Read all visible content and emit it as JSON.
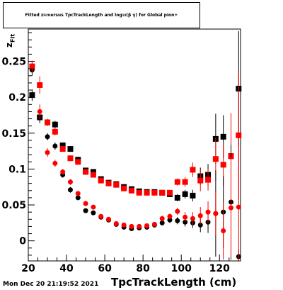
{
  "chart_data": {
    "type": "scatter",
    "title_parts": {
      "pre": "Fitted  z",
      "sub1": "Fit",
      "mid": " versus TpcTrackLength and log",
      "sub2": "10",
      "post": "(β γ) for Global pion+"
    },
    "xlabel": "TpcTrackLength (cm)",
    "ylabel_main": "z",
    "ylabel_sub": "Fit",
    "xlim": [
      20,
      131
    ],
    "ylim": [
      -0.028,
      0.295
    ],
    "x_ticks": [
      20,
      40,
      60,
      80,
      100,
      120
    ],
    "y_ticks": [
      0,
      0.05,
      0.1,
      0.15,
      0.2,
      0.25
    ],
    "series": [
      {
        "color": "#000000",
        "marker": "square",
        "errcolor": "#000000",
        "points": [
          {
            "x": 22,
            "y": 0.203,
            "e": 0.008
          },
          {
            "x": 26,
            "y": 0.172,
            "e": 0.005
          },
          {
            "x": 30,
            "y": 0.165,
            "e": 0.005
          },
          {
            "x": 34,
            "y": 0.162,
            "e": 0.005
          },
          {
            "x": 38,
            "y": 0.133,
            "e": 0.004
          },
          {
            "x": 42,
            "y": 0.128,
            "e": 0.004
          },
          {
            "x": 46,
            "y": 0.113,
            "e": 0.003
          },
          {
            "x": 50,
            "y": 0.098,
            "e": 0.003
          },
          {
            "x": 54,
            "y": 0.096,
            "e": 0.003
          },
          {
            "x": 58,
            "y": 0.086,
            "e": 0.003
          },
          {
            "x": 62,
            "y": 0.081,
            "e": 0.003
          },
          {
            "x": 66,
            "y": 0.079,
            "e": 0.003
          },
          {
            "x": 70,
            "y": 0.075,
            "e": 0.003
          },
          {
            "x": 74,
            "y": 0.072,
            "e": 0.003
          },
          {
            "x": 78,
            "y": 0.069,
            "e": 0.003
          },
          {
            "x": 82,
            "y": 0.068,
            "e": 0.003
          },
          {
            "x": 86,
            "y": 0.068,
            "e": 0.003
          },
          {
            "x": 90,
            "y": 0.067,
            "e": 0.003
          },
          {
            "x": 94,
            "y": 0.065,
            "e": 0.004
          },
          {
            "x": 98,
            "y": 0.06,
            "e": 0.005
          },
          {
            "x": 102,
            "y": 0.065,
            "e": 0.006
          },
          {
            "x": 106,
            "y": 0.063,
            "e": 0.008
          },
          {
            "x": 110,
            "y": 0.09,
            "e": 0.012
          },
          {
            "x": 114,
            "y": 0.092,
            "e": 0.015
          },
          {
            "x": 118,
            "y": 0.142,
            "e": 0.035
          },
          {
            "x": 122,
            "y": 0.145,
            "e": 0.03
          },
          {
            "x": 126,
            "y": 0.118,
            "e": 0.06
          },
          {
            "x": 130,
            "y": 0.212,
            "e": 0.08
          }
        ]
      },
      {
        "color": "#ff0000",
        "marker": "square",
        "errcolor": "#ff0000",
        "points": [
          {
            "x": 22,
            "y": 0.243,
            "e": 0.008
          },
          {
            "x": 26,
            "y": 0.217,
            "e": 0.012
          },
          {
            "x": 30,
            "y": 0.165,
            "e": 0.005
          },
          {
            "x": 34,
            "y": 0.152,
            "e": 0.005
          },
          {
            "x": 38,
            "y": 0.128,
            "e": 0.004
          },
          {
            "x": 42,
            "y": 0.115,
            "e": 0.004
          },
          {
            "x": 46,
            "y": 0.11,
            "e": 0.003
          },
          {
            "x": 50,
            "y": 0.096,
            "e": 0.003
          },
          {
            "x": 54,
            "y": 0.092,
            "e": 0.003
          },
          {
            "x": 58,
            "y": 0.084,
            "e": 0.003
          },
          {
            "x": 62,
            "y": 0.08,
            "e": 0.003
          },
          {
            "x": 66,
            "y": 0.078,
            "e": 0.003
          },
          {
            "x": 70,
            "y": 0.073,
            "e": 0.003
          },
          {
            "x": 74,
            "y": 0.07,
            "e": 0.003
          },
          {
            "x": 78,
            "y": 0.067,
            "e": 0.003
          },
          {
            "x": 82,
            "y": 0.067,
            "e": 0.003
          },
          {
            "x": 86,
            "y": 0.067,
            "e": 0.003
          },
          {
            "x": 90,
            "y": 0.067,
            "e": 0.004
          },
          {
            "x": 94,
            "y": 0.067,
            "e": 0.004
          },
          {
            "x": 98,
            "y": 0.082,
            "e": 0.005
          },
          {
            "x": 102,
            "y": 0.082,
            "e": 0.007
          },
          {
            "x": 106,
            "y": 0.099,
            "e": 0.01
          },
          {
            "x": 110,
            "y": 0.084,
            "e": 0.015
          },
          {
            "x": 114,
            "y": 0.085,
            "e": 0.015
          },
          {
            "x": 118,
            "y": 0.114,
            "e": 0.03
          },
          {
            "x": 122,
            "y": 0.106,
            "e": 0.03
          },
          {
            "x": 126,
            "y": 0.118,
            "e": 0.06
          },
          {
            "x": 130,
            "y": 0.147,
            "e": 0.09
          }
        ]
      },
      {
        "color": "#000000",
        "marker": "circle",
        "errcolor": "#000000",
        "points": [
          {
            "x": 22,
            "y": 0.238,
            "e": 0.008
          },
          {
            "x": 26,
            "y": 0.172,
            "e": 0.008
          },
          {
            "x": 30,
            "y": 0.145,
            "e": 0.005
          },
          {
            "x": 34,
            "y": 0.132,
            "e": 0.005
          },
          {
            "x": 38,
            "y": 0.092,
            "e": 0.004
          },
          {
            "x": 42,
            "y": 0.071,
            "e": 0.004
          },
          {
            "x": 46,
            "y": 0.06,
            "e": 0.003
          },
          {
            "x": 50,
            "y": 0.042,
            "e": 0.003
          },
          {
            "x": 54,
            "y": 0.039,
            "e": 0.003
          },
          {
            "x": 58,
            "y": 0.033,
            "e": 0.003
          },
          {
            "x": 62,
            "y": 0.029,
            "e": 0.003
          },
          {
            "x": 66,
            "y": 0.023,
            "e": 0.003
          },
          {
            "x": 70,
            "y": 0.019,
            "e": 0.003
          },
          {
            "x": 74,
            "y": 0.017,
            "e": 0.003
          },
          {
            "x": 78,
            "y": 0.018,
            "e": 0.003
          },
          {
            "x": 82,
            "y": 0.019,
            "e": 0.003
          },
          {
            "x": 86,
            "y": 0.022,
            "e": 0.003
          },
          {
            "x": 90,
            "y": 0.025,
            "e": 0.003
          },
          {
            "x": 94,
            "y": 0.029,
            "e": 0.004
          },
          {
            "x": 98,
            "y": 0.028,
            "e": 0.005
          },
          {
            "x": 102,
            "y": 0.026,
            "e": 0.006
          },
          {
            "x": 106,
            "y": 0.025,
            "e": 0.007
          },
          {
            "x": 110,
            "y": 0.022,
            "e": 0.01
          },
          {
            "x": 114,
            "y": 0.026,
            "e": 0.015
          },
          {
            "x": 118,
            "y": 0.038,
            "e": 0.06
          },
          {
            "x": 122,
            "y": 0.04,
            "e": 0.05
          },
          {
            "x": 126,
            "y": 0.054,
            "e": 0.08
          },
          {
            "x": 130,
            "y": -0.022,
            "e": 0.01
          }
        ]
      },
      {
        "color": "#ff0000",
        "marker": "circle",
        "errcolor": "#ff0000",
        "points": [
          {
            "x": 22,
            "y": 0.243,
            "e": 0.008
          },
          {
            "x": 26,
            "y": 0.18,
            "e": 0.01
          },
          {
            "x": 30,
            "y": 0.123,
            "e": 0.006
          },
          {
            "x": 34,
            "y": 0.108,
            "e": 0.005
          },
          {
            "x": 38,
            "y": 0.096,
            "e": 0.004
          },
          {
            "x": 42,
            "y": 0.082,
            "e": 0.004
          },
          {
            "x": 46,
            "y": 0.066,
            "e": 0.003
          },
          {
            "x": 50,
            "y": 0.052,
            "e": 0.003
          },
          {
            "x": 54,
            "y": 0.047,
            "e": 0.003
          },
          {
            "x": 58,
            "y": 0.034,
            "e": 0.003
          },
          {
            "x": 62,
            "y": 0.03,
            "e": 0.003
          },
          {
            "x": 66,
            "y": 0.024,
            "e": 0.003
          },
          {
            "x": 70,
            "y": 0.022,
            "e": 0.003
          },
          {
            "x": 74,
            "y": 0.02,
            "e": 0.003
          },
          {
            "x": 78,
            "y": 0.02,
            "e": 0.003
          },
          {
            "x": 82,
            "y": 0.021,
            "e": 0.003
          },
          {
            "x": 86,
            "y": 0.023,
            "e": 0.003
          },
          {
            "x": 90,
            "y": 0.031,
            "e": 0.004
          },
          {
            "x": 94,
            "y": 0.034,
            "e": 0.004
          },
          {
            "x": 98,
            "y": 0.041,
            "e": 0.005
          },
          {
            "x": 102,
            "y": 0.033,
            "e": 0.007
          },
          {
            "x": 106,
            "y": 0.031,
            "e": 0.009
          },
          {
            "x": 110,
            "y": 0.035,
            "e": 0.012
          },
          {
            "x": 114,
            "y": 0.04,
            "e": 0.015
          },
          {
            "x": 118,
            "y": 0.038,
            "e": 0.03
          },
          {
            "x": 122,
            "y": 0.014,
            "e": 0.04
          },
          {
            "x": 126,
            "y": 0.046,
            "e": 0.07
          },
          {
            "x": 130,
            "y": 0.047,
            "e": 0.09
          }
        ]
      }
    ]
  },
  "footer": "Mon Dec 20 21:19:52 2021"
}
